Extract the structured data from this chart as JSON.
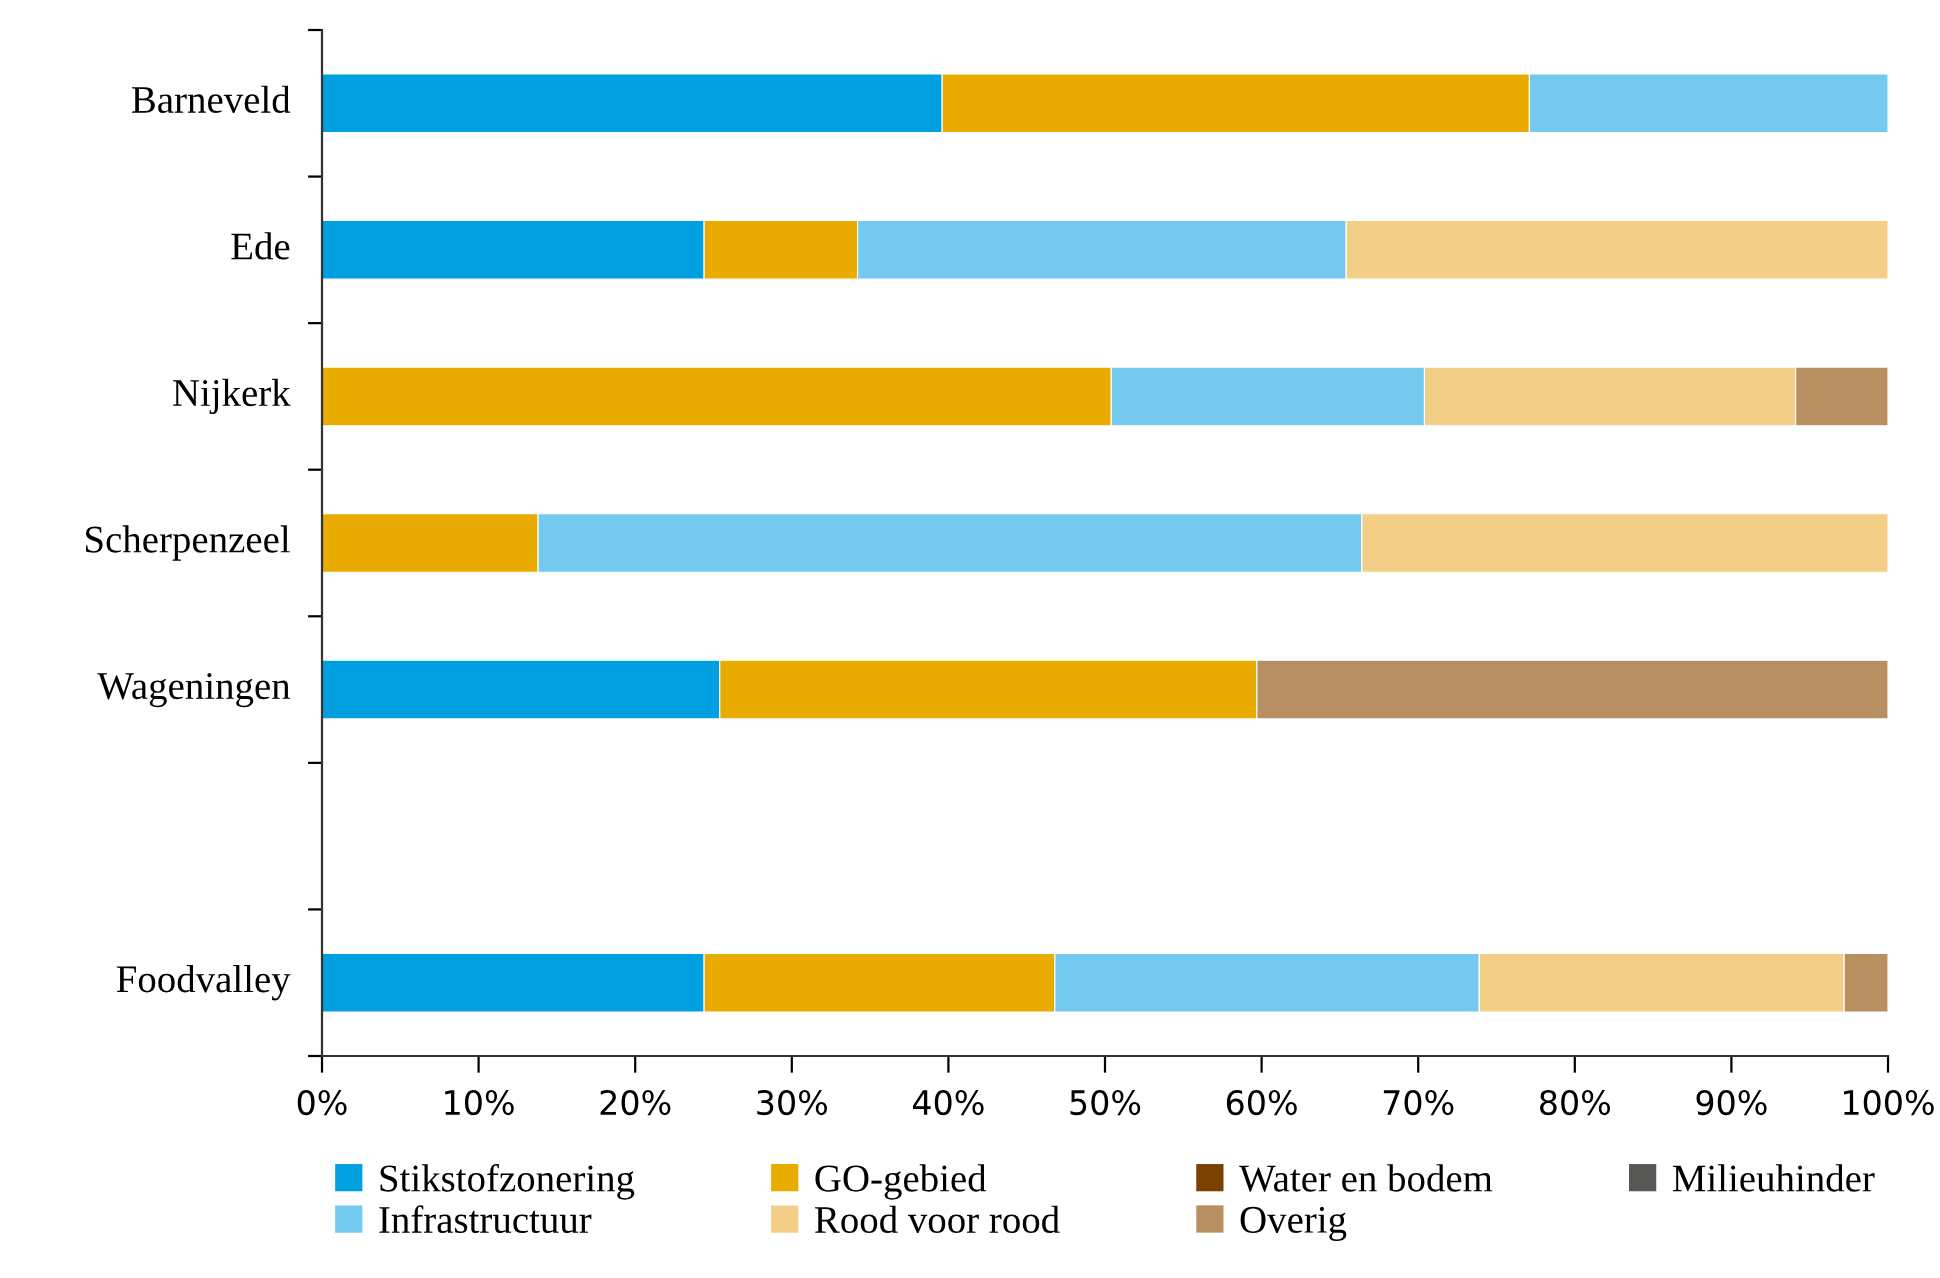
{
  "chart_data": {
    "type": "bar",
    "orientation": "horizontal",
    "stacked": true,
    "categories": [
      "Barneveld",
      "Ede",
      "Nijkerk",
      "Scherpenzeel",
      "Wageningen",
      null,
      "Foodvalley"
    ],
    "series": [
      {
        "name": "Stikstofzonering",
        "color": "#009fe0",
        "values": [
          39.6,
          24.4,
          0,
          0,
          25.4,
          null,
          24.4
        ]
      },
      {
        "name": "GO-gebied",
        "color": "#e9ab00",
        "values": [
          37.5,
          9.8,
          50.4,
          13.8,
          34.3,
          null,
          22.4
        ]
      },
      {
        "name": "Water en bodem",
        "color": "#7a4100",
        "values": [
          0,
          0,
          0,
          0,
          0,
          null,
          0
        ]
      },
      {
        "name": "Milieuhinder",
        "color": "#575756",
        "values": [
          0,
          0,
          0,
          0,
          0,
          null,
          0
        ]
      },
      {
        "name": "Infrastructuur",
        "color": "#74caee",
        "values": [
          22.9,
          31.2,
          20.0,
          52.6,
          0,
          null,
          27.1
        ]
      },
      {
        "name": "Rood voor rood",
        "color": "#f3ce86",
        "values": [
          0,
          34.6,
          23.7,
          33.6,
          0,
          null,
          23.3
        ]
      },
      {
        "name": "Overig",
        "color": "#b88f61",
        "values": [
          0,
          0,
          5.9,
          0,
          40.3,
          null,
          2.8
        ]
      }
    ],
    "xlim": [
      0,
      100
    ],
    "xticks": [
      {
        "value": 0,
        "label": "0%"
      },
      {
        "value": 10,
        "label": "10%"
      },
      {
        "value": 20,
        "label": "20%"
      },
      {
        "value": 30,
        "label": "30%"
      },
      {
        "value": 40,
        "label": "40%"
      },
      {
        "value": 50,
        "label": "50%"
      },
      {
        "value": 60,
        "label": "60%"
      },
      {
        "value": 70,
        "label": "70%"
      },
      {
        "value": 80,
        "label": "80%"
      },
      {
        "value": 90,
        "label": "90%"
      },
      {
        "value": 100,
        "label": "100%"
      }
    ],
    "legend": "bottom",
    "grid": false
  }
}
